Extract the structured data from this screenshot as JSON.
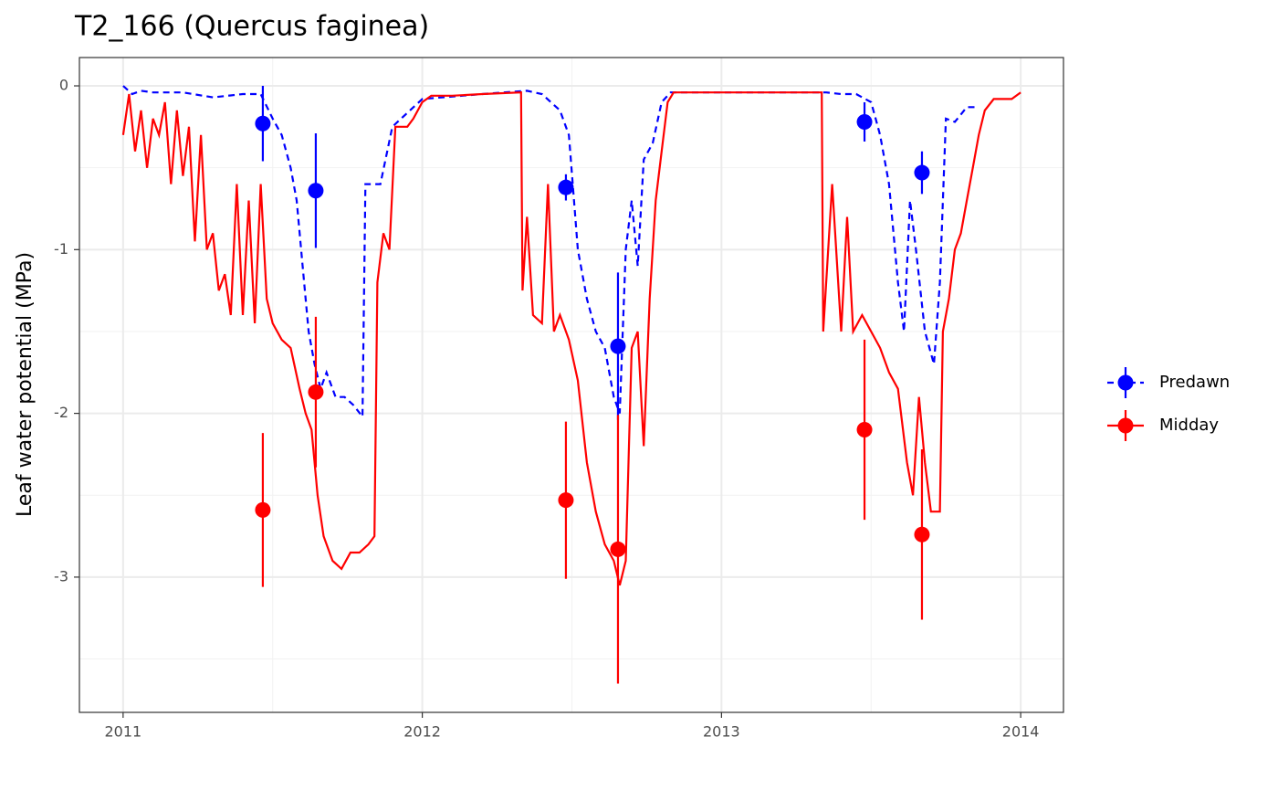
{
  "chart_data": {
    "type": "line",
    "title": "T2_166 (Quercus faginea)",
    "y_label": "Leaf water potential (MPa)",
    "xlim": [
      2010.854,
      2014.143
    ],
    "ylim": [
      -3.826,
      0.173
    ],
    "xticks": [
      2011,
      2012,
      2013,
      2014
    ],
    "yticks": [
      0,
      -1,
      -2,
      -3
    ],
    "minor_xticks": [
      2011.5,
      2012.5,
      2013.5
    ],
    "minor_yticks": [
      -0.5,
      -1.5,
      -2.5,
      -3.5
    ],
    "grid": true,
    "legend": "right",
    "series": [
      {
        "name": "Predawn",
        "color": "#0000ff",
        "dash": true,
        "x": [
          2011.0,
          2011.03,
          2011.06,
          2011.1,
          2011.2,
          2011.3,
          2011.4,
          2011.46,
          2011.5,
          2011.53,
          2011.56,
          2011.58,
          2011.6,
          2011.62,
          2011.64,
          2011.66,
          2011.68,
          2011.71,
          2011.74,
          2011.77,
          2011.8,
          2011.81,
          2011.84,
          2011.86,
          2011.9,
          2012.0,
          2012.2,
          2012.35,
          2012.4,
          2012.43,
          2012.46,
          2012.49,
          2012.52,
          2012.55,
          2012.58,
          2012.61,
          2012.64,
          2012.66,
          2012.68,
          2012.7,
          2012.72,
          2012.74,
          2012.77,
          2012.8,
          2012.83,
          2013.0,
          2013.35,
          2013.4,
          2013.45,
          2013.5,
          2013.53,
          2013.56,
          2013.59,
          2013.61,
          2013.63,
          2013.65,
          2013.68,
          2013.71,
          2013.73,
          2013.75,
          2013.78,
          2013.82,
          2013.86
        ],
        "values": [
          0.0,
          -0.05,
          -0.03,
          -0.04,
          -0.04,
          -0.07,
          -0.05,
          -0.05,
          -0.2,
          -0.3,
          -0.5,
          -0.7,
          -1.1,
          -1.5,
          -1.7,
          -1.85,
          -1.75,
          -1.9,
          -1.9,
          -1.95,
          -2.02,
          -0.6,
          -0.6,
          -0.6,
          -0.25,
          -0.08,
          -0.05,
          -0.03,
          -0.05,
          -0.1,
          -0.15,
          -0.3,
          -1.0,
          -1.3,
          -1.5,
          -1.6,
          -1.9,
          -2.0,
          -1.0,
          -0.7,
          -1.1,
          -0.45,
          -0.35,
          -0.1,
          -0.04,
          -0.04,
          -0.04,
          -0.05,
          -0.05,
          -0.1,
          -0.3,
          -0.6,
          -1.2,
          -1.5,
          -0.7,
          -1.0,
          -1.5,
          -1.7,
          -1.2,
          -0.2,
          -0.22,
          -0.13,
          -0.13
        ],
        "obs_x": [
          2011.467,
          2011.644,
          2012.48,
          2012.654,
          2013.478,
          2013.67
        ],
        "obs_values": [
          -0.23,
          -0.64,
          -0.62,
          -1.59,
          -0.22,
          -0.53
        ],
        "obs_errors": [
          0.23,
          0.35,
          0.08,
          0.45,
          0.12,
          0.13
        ]
      },
      {
        "name": "Midday",
        "color": "#ff0000",
        "dash": false,
        "x": [
          2011.0,
          2011.02,
          2011.04,
          2011.06,
          2011.08,
          2011.1,
          2011.12,
          2011.14,
          2011.16,
          2011.18,
          2011.2,
          2011.22,
          2011.24,
          2011.26,
          2011.28,
          2011.3,
          2011.32,
          2011.34,
          2011.36,
          2011.38,
          2011.4,
          2011.42,
          2011.44,
          2011.46,
          2011.48,
          2011.5,
          2011.53,
          2011.56,
          2011.59,
          2011.61,
          2011.63,
          2011.65,
          2011.67,
          2011.7,
          2011.73,
          2011.76,
          2011.79,
          2011.82,
          2011.84,
          2011.85,
          2011.87,
          2011.89,
          2011.91,
          2011.95,
          2011.97,
          2012.0,
          2012.03,
          2012.1,
          2012.2,
          2012.33,
          2012.335,
          2012.35,
          2012.37,
          2012.4,
          2012.42,
          2012.44,
          2012.46,
          2012.49,
          2012.52,
          2012.55,
          2012.58,
          2012.61,
          2012.64,
          2012.66,
          2012.68,
          2012.7,
          2012.72,
          2012.74,
          2012.76,
          2012.78,
          2012.8,
          2012.82,
          2012.84,
          2013.0,
          2013.2,
          2013.335,
          2013.34,
          2013.37,
          2013.4,
          2013.42,
          2013.44,
          2013.47,
          2013.5,
          2013.53,
          2013.56,
          2013.59,
          2013.62,
          2013.64,
          2013.66,
          2013.68,
          2013.7,
          2013.73,
          2013.74,
          2013.76,
          2013.78,
          2013.8,
          2013.82,
          2013.84,
          2013.86,
          2013.88,
          2013.91,
          2013.97,
          2014.0
        ],
        "values": [
          -0.3,
          -0.05,
          -0.4,
          -0.15,
          -0.5,
          -0.2,
          -0.3,
          -0.1,
          -0.6,
          -0.15,
          -0.55,
          -0.25,
          -0.95,
          -0.3,
          -1.0,
          -0.9,
          -1.25,
          -1.15,
          -1.4,
          -0.6,
          -1.4,
          -0.7,
          -1.45,
          -0.6,
          -1.3,
          -1.45,
          -1.55,
          -1.6,
          -1.85,
          -2.0,
          -2.1,
          -2.5,
          -2.75,
          -2.9,
          -2.95,
          -2.85,
          -2.85,
          -2.8,
          -2.75,
          -1.2,
          -0.9,
          -1.0,
          -0.25,
          -0.25,
          -0.2,
          -0.1,
          -0.06,
          -0.06,
          -0.05,
          -0.04,
          -1.25,
          -0.8,
          -1.4,
          -1.45,
          -0.6,
          -1.5,
          -1.4,
          -1.55,
          -1.8,
          -2.3,
          -2.6,
          -2.8,
          -2.9,
          -3.05,
          -2.9,
          -1.6,
          -1.5,
          -2.2,
          -1.3,
          -0.7,
          -0.4,
          -0.1,
          -0.04,
          -0.04,
          -0.04,
          -0.04,
          -1.5,
          -0.6,
          -1.5,
          -0.8,
          -1.5,
          -1.4,
          -1.5,
          -1.6,
          -1.75,
          -1.85,
          -2.3,
          -2.5,
          -1.9,
          -2.3,
          -2.6,
          -2.6,
          -1.5,
          -1.3,
          -1.0,
          -0.9,
          -0.7,
          -0.5,
          -0.3,
          -0.15,
          -0.08,
          -0.08,
          -0.04
        ],
        "obs_x": [
          2011.467,
          2011.644,
          2012.48,
          2012.654,
          2013.478,
          2013.67
        ],
        "obs_values": [
          -2.59,
          -1.87,
          -2.53,
          -2.83,
          -2.1,
          -2.74
        ],
        "obs_errors": [
          0.47,
          0.46,
          0.48,
          0.82,
          0.55,
          0.52
        ]
      }
    ]
  }
}
